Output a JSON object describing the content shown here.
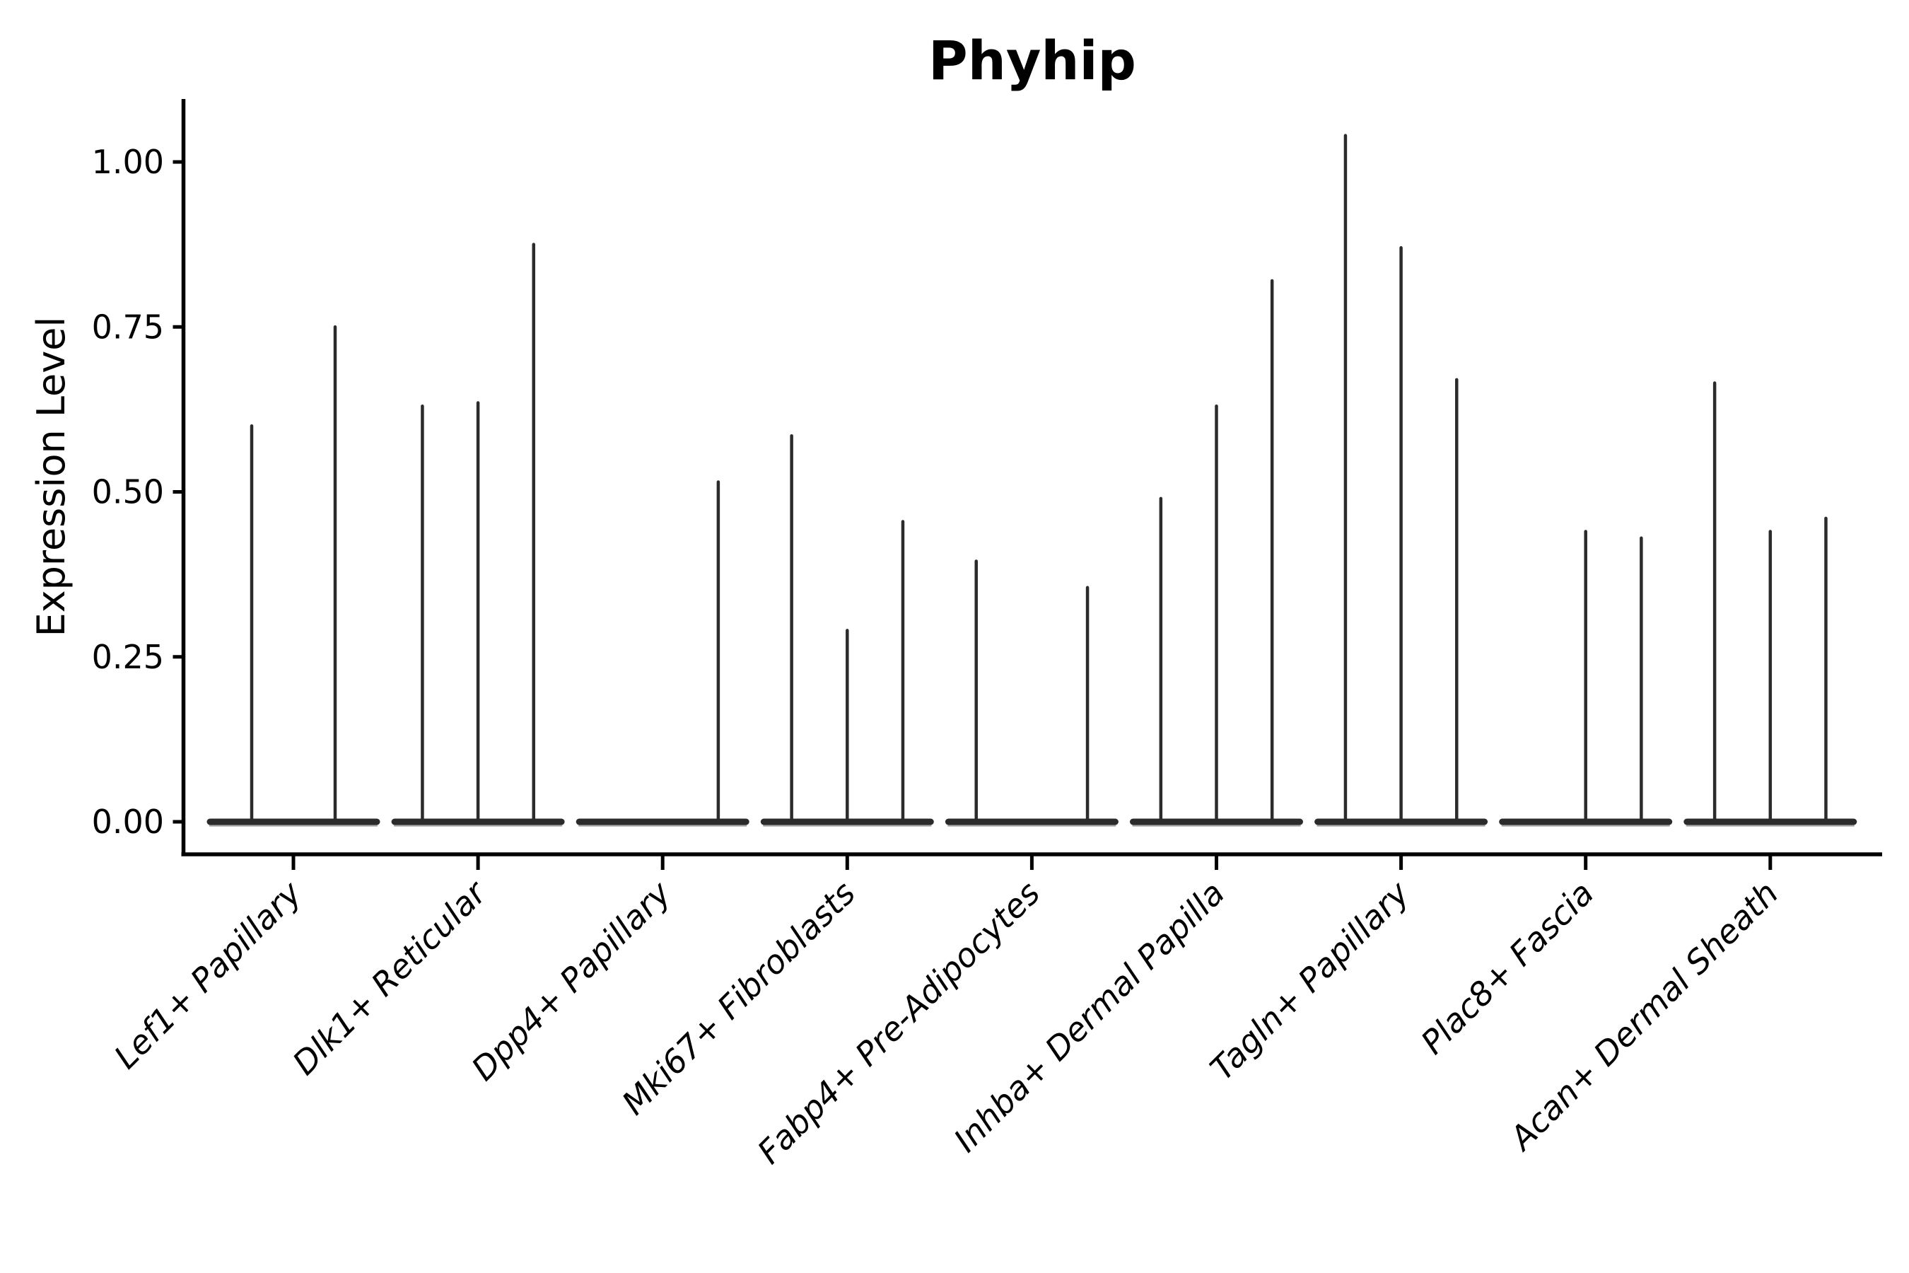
{
  "figure": {
    "title": "Phyhip",
    "background": "#ffffff"
  },
  "chart_data": {
    "type": "violin",
    "title": "Phyhip",
    "xlabel": "",
    "ylabel": "Expression Level",
    "ylim": [
      -0.05,
      1.1
    ],
    "yticks": [
      0.0,
      0.25,
      0.5,
      0.75,
      1.0
    ],
    "ytick_labels": [
      "0.00",
      "0.25",
      "0.50",
      "0.75",
      "1.00"
    ],
    "grid": false,
    "legend": null,
    "categories": [
      "Lef1+ Papillary",
      "Dlk1+ Reticular",
      "Dpp4+ Papillary",
      "Mki67+ Fibroblasts",
      "Fabp4+ Pre-Adipocytes",
      "Inhba+ Dermal Papilla",
      "Tagln+ Papillary",
      "Plac8+ Fascia",
      "Acan+ Dermal Sheath"
    ],
    "series": [
      {
        "category": "Lef1+ Papillary",
        "violin_max_values": [
          0.6,
          0.75
        ]
      },
      {
        "category": "Dlk1+ Reticular",
        "violin_max_values": [
          0.63,
          0.635,
          0.875
        ]
      },
      {
        "category": "Dpp4+ Papillary",
        "violin_max_values": [
          0,
          0,
          0.515
        ]
      },
      {
        "category": "Mki67+ Fibroblasts",
        "violin_max_values": [
          0.585,
          0.29,
          0.455
        ]
      },
      {
        "category": "Fabp4+ Pre-Adipocytes",
        "violin_max_values": [
          0.395,
          0,
          0.355
        ]
      },
      {
        "category": "Inhba+ Dermal Papilla",
        "violin_max_values": [
          0.49,
          0.63,
          0.82
        ]
      },
      {
        "category": "Tagln+ Papillary",
        "violin_max_values": [
          1.04,
          0.87,
          0.67
        ]
      },
      {
        "category": "Plac8+ Fascia",
        "violin_max_values": [
          0,
          0.44,
          0.43
        ]
      },
      {
        "category": "Acan+ Dermal Sheath",
        "violin_max_values": [
          0.665,
          0.44,
          0.46
        ]
      }
    ],
    "colors": {
      "violin_stroke": "#2b2b2b",
      "violin_base_shadow": "#9b9b9b",
      "axis": "#000000",
      "text": "#000000"
    }
  }
}
